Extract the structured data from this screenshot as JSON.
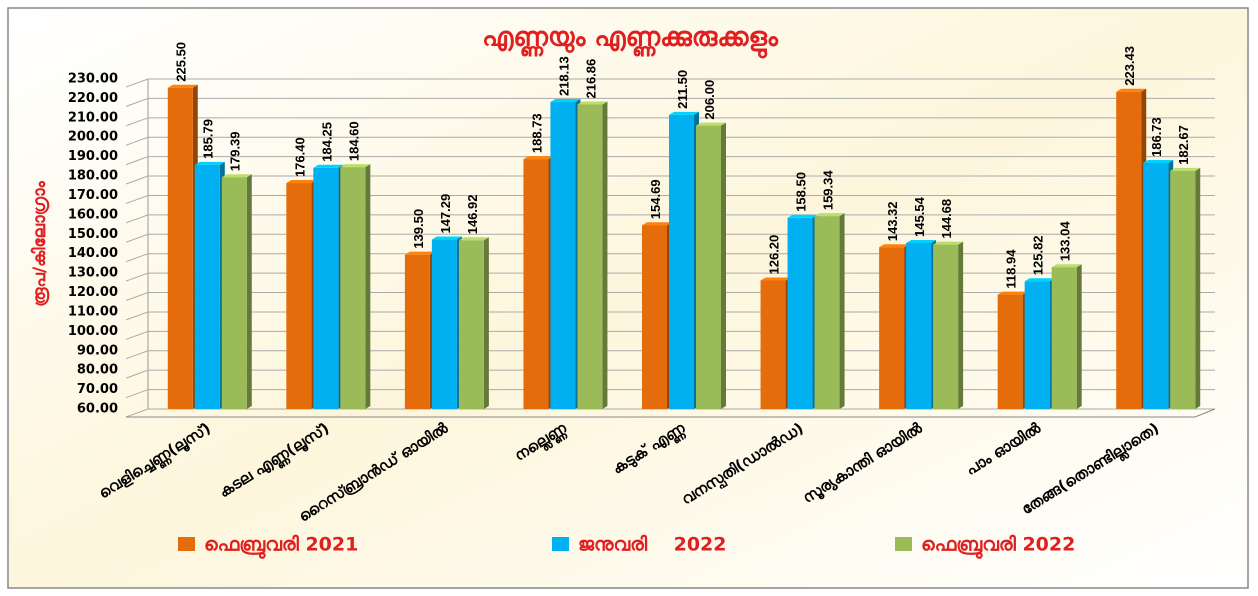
{
  "chart_data": {
    "type": "bar",
    "title": "എണ്ണയും എണ്ണക്കുരുക്കളും",
    "y_label": "രൂപ/കിലോഗ്രാം",
    "categories": [
      "വെളിച്ചെണ്ണ(ലൂസ്)",
      "കടല എണ്ണ(ലൂസ്)",
      "റൈസ്ബ്രാൻഡ് ഓയിൽ",
      "നല്ലെണ്ണ",
      "കടുക് എണ്ണ",
      "വനസ്പതി(ഡാൽഡ)",
      "സൂര്യകാന്തി ഓയിൽ",
      "പാം ഓയിൽ",
      "തേങ്ങ(തൊണ്ടില്ലാതെ)"
    ],
    "series": [
      {
        "name": "ഫെബ്രുവരി 2021",
        "color": "#e46c0a",
        "values": [
          225.5,
          176.4,
          139.5,
          188.73,
          154.69,
          126.2,
          143.32,
          118.94,
          223.43
        ],
        "value_labels": [
          "225.50",
          "176.40",
          "139.50",
          "188.73",
          "154.69",
          "126.20",
          "143.32",
          "118.94",
          "223.43"
        ]
      },
      {
        "name": "ജനുവരി    2022",
        "color": "#00b0f0",
        "values": [
          185.79,
          184.25,
          147.29,
          218.13,
          211.5,
          158.5,
          145.54,
          125.82,
          186.73
        ],
        "value_labels": [
          "185.79",
          "184.25",
          "147.29",
          "218.13",
          "211.50",
          "158.50",
          "145.54",
          "125.82",
          "186.73"
        ]
      },
      {
        "name": "ഫെബ്രുവരി 2022",
        "color": "#9bbb59",
        "values": [
          179.39,
          184.6,
          146.92,
          216.86,
          206.0,
          159.34,
          144.68,
          133.04,
          182.67
        ],
        "value_labels": [
          "179.39",
          "184.60",
          "146.92",
          "216.86",
          "206.00",
          "159.34",
          "144.68",
          "133.04",
          "182.67"
        ]
      }
    ],
    "ylim": [
      60,
      230
    ],
    "yticks": [
      {
        "value": 60,
        "label": "60.00"
      },
      {
        "value": 70,
        "label": "70.00"
      },
      {
        "value": 80,
        "label": "80.00"
      },
      {
        "value": 90,
        "label": "90.00"
      },
      {
        "value": 100,
        "label": "100.00"
      },
      {
        "value": 110,
        "label": "110.00"
      },
      {
        "value": 120,
        "label": "120.00"
      },
      {
        "value": 130,
        "label": "130.00"
      },
      {
        "value": 140,
        "label": "140.00"
      },
      {
        "value": 150,
        "label": "150.00"
      },
      {
        "value": 160,
        "label": "160.00"
      },
      {
        "value": 170,
        "label": "170.00"
      },
      {
        "value": 180,
        "label": "180.00"
      },
      {
        "value": 190,
        "label": "190.00"
      },
      {
        "value": 200,
        "label": "200.00"
      },
      {
        "value": 210,
        "label": "210.00"
      },
      {
        "value": 220,
        "label": "220.00"
      },
      {
        "value": 230,
        "label": "230.00"
      }
    ],
    "grid": true
  }
}
